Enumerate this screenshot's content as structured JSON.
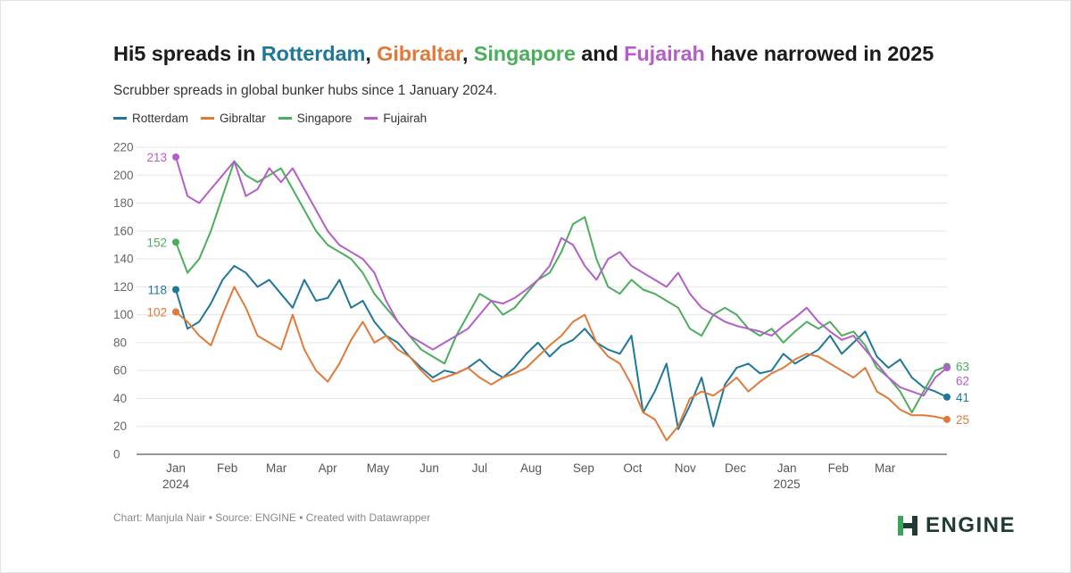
{
  "header": {
    "title_parts": [
      {
        "text": "Hi5 spreads in ",
        "color": "#1b1b1b"
      },
      {
        "text": "Rotterdam",
        "color": "#1f7799"
      },
      {
        "text": ", ",
        "color": "#1b1b1b"
      },
      {
        "text": "Gibraltar",
        "color": "#e0793a"
      },
      {
        "text": ", ",
        "color": "#1b1b1b"
      },
      {
        "text": "Singapore",
        "color": "#4cae5c"
      },
      {
        "text": " and ",
        "color": "#1b1b1b"
      },
      {
        "text": "Fujairah",
        "color": "#b35ec9"
      },
      {
        "text": " have narrowed in 2025",
        "color": "#1b1b1b"
      }
    ],
    "subtitle": "Scrubber spreads in global bunker hubs since 1 January 2024."
  },
  "footer": {
    "credit": "Chart: Manjula Nair • Source: ENGINE • Created with Datawrapper",
    "logo_text": "ENGINE",
    "logo_color": "#1f3b34",
    "logo_accent": "#3aa35a"
  },
  "chart_data": {
    "type": "line",
    "title": "Hi5 spreads in Rotterdam, Gibraltar, Singapore and Fujairah have narrowed in 2025",
    "subtitle": "Scrubber spreads in global bunker hubs since 1 January 2024.",
    "xlabel": "",
    "ylabel": "",
    "ylim": [
      0,
      220
    ],
    "yticks": [
      0,
      20,
      40,
      60,
      80,
      100,
      120,
      140,
      160,
      180,
      200,
      220
    ],
    "grid": true,
    "legend_position": "top-left",
    "x_unit": "weeks since 1 January 2024",
    "x_range": [
      0,
      66
    ],
    "x_ticks": [
      {
        "x": 0,
        "label": "Jan",
        "sublabel": "2024"
      },
      {
        "x": 4.4,
        "label": "Feb",
        "sublabel": ""
      },
      {
        "x": 8.6,
        "label": "Mar",
        "sublabel": ""
      },
      {
        "x": 13.0,
        "label": "Apr",
        "sublabel": ""
      },
      {
        "x": 17.3,
        "label": "May",
        "sublabel": ""
      },
      {
        "x": 21.7,
        "label": "Jun",
        "sublabel": ""
      },
      {
        "x": 26.0,
        "label": "Jul",
        "sublabel": ""
      },
      {
        "x": 30.4,
        "label": "Aug",
        "sublabel": ""
      },
      {
        "x": 34.9,
        "label": "Sep",
        "sublabel": ""
      },
      {
        "x": 39.1,
        "label": "Oct",
        "sublabel": ""
      },
      {
        "x": 43.6,
        "label": "Nov",
        "sublabel": ""
      },
      {
        "x": 47.9,
        "label": "Dec",
        "sublabel": ""
      },
      {
        "x": 52.3,
        "label": "Jan",
        "sublabel": "2025"
      },
      {
        "x": 56.7,
        "label": "Feb",
        "sublabel": ""
      },
      {
        "x": 60.7,
        "label": "Mar",
        "sublabel": ""
      }
    ],
    "x": [
      0,
      1,
      2,
      3,
      4,
      5,
      6,
      7,
      8,
      9,
      10,
      11,
      12,
      13,
      14,
      15,
      16,
      17,
      18,
      19,
      20,
      21,
      22,
      23,
      24,
      25,
      26,
      27,
      28,
      29,
      30,
      31,
      32,
      33,
      34,
      35,
      36,
      37,
      38,
      39,
      40,
      41,
      42,
      43,
      44,
      45,
      46,
      47,
      48,
      49,
      50,
      51,
      52,
      53,
      54,
      55,
      56,
      57,
      58,
      59,
      60,
      61,
      62,
      63,
      64,
      65,
      66
    ],
    "series": [
      {
        "name": "Rotterdam",
        "color": "#1f7799",
        "start_label": "118",
        "end_label": "41",
        "values": [
          118,
          90,
          95,
          108,
          125,
          135,
          130,
          120,
          125,
          115,
          105,
          125,
          110,
          112,
          125,
          105,
          110,
          95,
          85,
          80,
          70,
          62,
          55,
          60,
          58,
          62,
          68,
          60,
          55,
          62,
          72,
          80,
          70,
          78,
          82,
          90,
          80,
          75,
          72,
          85,
          30,
          45,
          65,
          18,
          35,
          55,
          20,
          50,
          62,
          65,
          58,
          60,
          72,
          65,
          70,
          75,
          85,
          72,
          80,
          88,
          70,
          62,
          68,
          55,
          48,
          45,
          41
        ]
      },
      {
        "name": "Gibraltar",
        "color": "#e0793a",
        "start_label": "102",
        "end_label": "25",
        "values": [
          102,
          95,
          85,
          78,
          100,
          120,
          105,
          85,
          80,
          75,
          100,
          75,
          60,
          52,
          65,
          82,
          95,
          80,
          85,
          75,
          70,
          60,
          52,
          55,
          58,
          62,
          55,
          50,
          55,
          58,
          62,
          70,
          78,
          85,
          95,
          100,
          80,
          70,
          65,
          50,
          30,
          25,
          10,
          20,
          40,
          45,
          42,
          48,
          55,
          45,
          52,
          58,
          62,
          68,
          72,
          70,
          65,
          60,
          55,
          62,
          45,
          40,
          32,
          28,
          28,
          27,
          25
        ]
      },
      {
        "name": "Singapore",
        "color": "#4cae5c",
        "start_label": "152",
        "end_label": "63",
        "values": [
          152,
          130,
          140,
          160,
          185,
          210,
          200,
          195,
          200,
          205,
          190,
          175,
          160,
          150,
          145,
          140,
          130,
          115,
          105,
          95,
          85,
          75,
          70,
          65,
          85,
          100,
          115,
          110,
          100,
          105,
          115,
          125,
          130,
          145,
          165,
          170,
          140,
          120,
          115,
          125,
          118,
          115,
          110,
          105,
          90,
          85,
          100,
          105,
          100,
          90,
          85,
          90,
          80,
          88,
          95,
          90,
          95,
          85,
          88,
          78,
          62,
          55,
          45,
          30,
          45,
          60,
          63
        ]
      },
      {
        "name": "Fujairah",
        "color": "#b35ec9",
        "start_label": "213",
        "end_label": "62",
        "values": [
          213,
          185,
          180,
          190,
          200,
          210,
          185,
          190,
          205,
          195,
          205,
          190,
          175,
          160,
          150,
          145,
          140,
          130,
          110,
          95,
          85,
          80,
          75,
          80,
          85,
          90,
          100,
          110,
          108,
          112,
          118,
          125,
          135,
          155,
          150,
          135,
          125,
          140,
          145,
          135,
          130,
          125,
          120,
          130,
          115,
          105,
          100,
          95,
          92,
          90,
          88,
          85,
          92,
          98,
          105,
          95,
          88,
          82,
          85,
          75,
          65,
          55,
          48,
          45,
          42,
          55,
          62
        ]
      }
    ]
  }
}
